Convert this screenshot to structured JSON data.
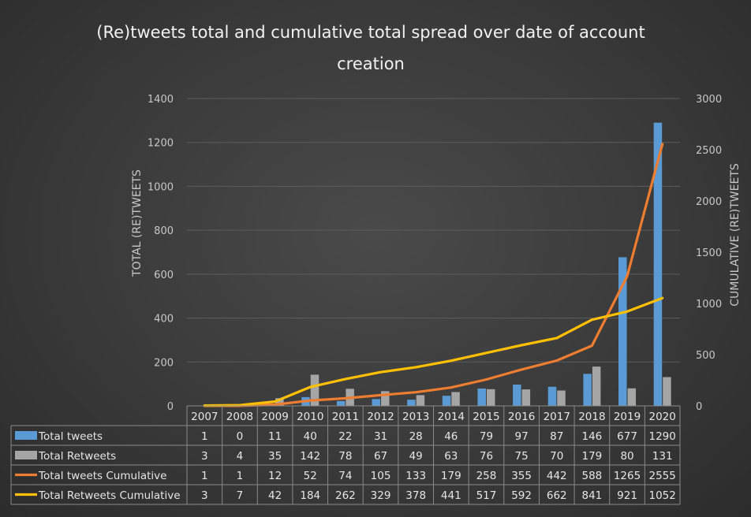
{
  "chart_data": {
    "type": "bar",
    "title": "(Re)tweets total and cumulative total spread over date of account creation",
    "title_lines": [
      "(Re)tweets total and cumulative total spread over date of account",
      "creation"
    ],
    "ylabel": "TOTAL (RE)TWEETS",
    "y2label": "CUMULATIVE (RE)TWEETS",
    "ylim": [
      0,
      1400
    ],
    "y2lim": [
      0,
      3000
    ],
    "yticks": [
      0,
      200,
      400,
      600,
      800,
      1000,
      1200,
      1400
    ],
    "y2ticks": [
      0,
      500,
      1000,
      1500,
      2000,
      2500,
      3000
    ],
    "categories": [
      "2007",
      "2008",
      "2009",
      "2010",
      "2011",
      "2012",
      "2013",
      "2014",
      "2015",
      "2016",
      "2017",
      "2018",
      "2019",
      "2020"
    ],
    "grid": true,
    "data_table": true,
    "series": [
      {
        "name": "Total tweets",
        "kind": "bar",
        "axis": "primary",
        "color": "#5b9bd5",
        "values": [
          1,
          0,
          11,
          40,
          22,
          31,
          28,
          46,
          79,
          97,
          87,
          146,
          677,
          1290
        ]
      },
      {
        "name": "Total Retweets",
        "kind": "bar",
        "axis": "primary",
        "color": "#a5a5a5",
        "values": [
          3,
          4,
          35,
          142,
          78,
          67,
          49,
          63,
          76,
          75,
          70,
          179,
          80,
          131
        ]
      },
      {
        "name": "Total tweets Cumulative",
        "kind": "line",
        "axis": "secondary",
        "color": "#ed7d31",
        "values": [
          1,
          1,
          12,
          52,
          74,
          105,
          133,
          179,
          258,
          355,
          442,
          588,
          1265,
          2555
        ]
      },
      {
        "name": "Total Retweets Cumulative",
        "kind": "line",
        "axis": "secondary",
        "color": "#ffc000",
        "values": [
          3,
          7,
          42,
          184,
          262,
          329,
          378,
          441,
          517,
          592,
          662,
          841,
          921,
          1052
        ]
      }
    ]
  }
}
